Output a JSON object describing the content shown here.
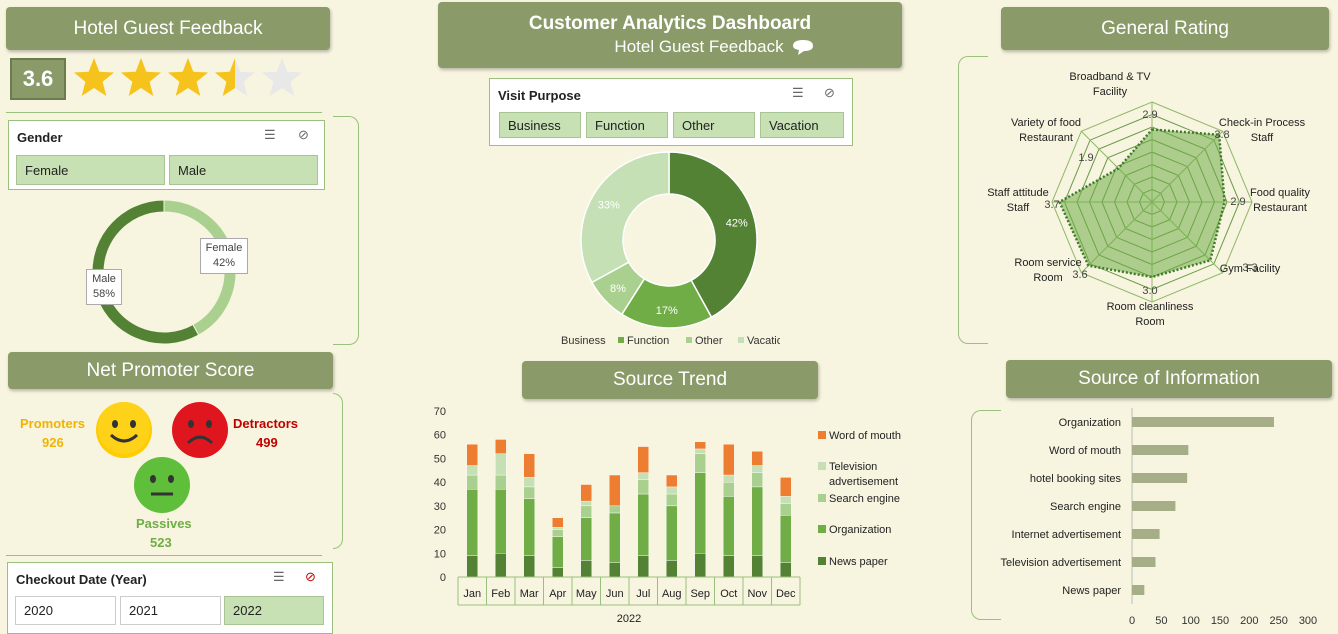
{
  "dashboard": {
    "title": "Customer Analytics Dashboard",
    "subtitle": "Hotel Guest Feedback"
  },
  "feedback": {
    "header": "Hotel Guest Feedback",
    "rating": "3.6"
  },
  "gender": {
    "title": "Gender",
    "buttons": [
      "Female",
      "Male"
    ],
    "chart_labels": {
      "female": "Female",
      "female_pct": "42%",
      "male": "Male",
      "male_pct": "58%"
    }
  },
  "visit": {
    "title": "Visit Purpose",
    "buttons": [
      "Business",
      "Function",
      "Other",
      "Vacation"
    ]
  },
  "nps": {
    "header": "Net Promoter Score",
    "promoters_label": "Promoters",
    "promoters": "926",
    "detractors_label": "Detractors",
    "detractors": "499",
    "passives_label": "Passives",
    "passives": "523"
  },
  "checkout": {
    "title": "Checkout Date (Year)",
    "buttons": [
      "2020",
      "2021",
      "2022"
    ],
    "selected": "2022"
  },
  "headers": {
    "general_rating": "General Rating",
    "source_trend": "Source Trend",
    "source_info": "Source of Information"
  },
  "colors": {
    "header": "#8a9a68",
    "dark_green": "#548235",
    "green": "#70ad47",
    "light_green": "#a9d08e",
    "pale_green": "#c5e0b4",
    "orange": "#ed7d31",
    "promoter": "#f0b400",
    "detractor": "#c00000",
    "passive": "#70ad47"
  },
  "chart_data": [
    {
      "type": "pie",
      "title": "",
      "categories": [
        "Female",
        "Male"
      ],
      "values": [
        42,
        58
      ]
    },
    {
      "type": "pie",
      "title": "",
      "categories": [
        "Business",
        "Function",
        "Other",
        "Vacation"
      ],
      "values": [
        42,
        17,
        8,
        33
      ],
      "labels": [
        "42%",
        "17%",
        "8%",
        "33%"
      ]
    },
    {
      "type": "radar",
      "title": "",
      "categories": [
        "Broadband & TV Facility",
        "Check-in Process Staff",
        "Food quality Restaurant",
        "Gym Facility",
        "Room cleanliness Room",
        "Room service Room",
        "Staff attitude Staff",
        "Variety of food Restaurant"
      ],
      "category_lines": [
        [
          "Broadband & TV",
          "Facility"
        ],
        [
          "Check-in Process",
          "Staff"
        ],
        [
          "Food quality",
          "Restaurant"
        ],
        [
          "Gym Facility"
        ],
        [
          "Room cleanliness",
          "Room"
        ],
        [
          "Room service",
          "Room"
        ],
        [
          "Staff attitude",
          "Staff"
        ],
        [
          "Variety of food",
          "Restaurant"
        ]
      ],
      "values": [
        2.9,
        3.8,
        2.9,
        3.3,
        3.0,
        3.6,
        3.7,
        1.9
      ],
      "value_labels": [
        "2.9",
        "3.8",
        "2.9",
        "3.3",
        "3.0",
        "3.6",
        "3.7",
        "1.9"
      ],
      "rmax": 4
    },
    {
      "type": "bar",
      "stacked": true,
      "title": "",
      "categories": [
        "Jan",
        "Feb",
        "Mar",
        "Apr",
        "May",
        "Jun",
        "Jul",
        "Aug",
        "Sep",
        "Oct",
        "Nov",
        "Dec"
      ],
      "xlabel": "2022",
      "ylim": [
        0,
        70
      ],
      "yticks": [
        "0",
        "10",
        "20",
        "30",
        "40",
        "50",
        "60",
        "70"
      ],
      "series": [
        {
          "name": "News paper",
          "values": [
            9,
            10,
            9,
            4,
            7,
            6,
            9,
            7,
            10,
            9,
            9,
            6
          ]
        },
        {
          "name": "Organization",
          "values": [
            28,
            27,
            24,
            13,
            18,
            21,
            26,
            23,
            34,
            25,
            29,
            20
          ]
        },
        {
          "name": "Search engine",
          "values": [
            6,
            6,
            5,
            3,
            5,
            3,
            6,
            5,
            8,
            6,
            6,
            5
          ]
        },
        {
          "name": "Television advertisement",
          "values": [
            4,
            9,
            4,
            1,
            2,
            0,
            3,
            3,
            2,
            3,
            3,
            3
          ]
        },
        {
          "name": "Word of mouth",
          "values": [
            9,
            6,
            10,
            4,
            7,
            13,
            11,
            5,
            3,
            13,
            6,
            8
          ]
        }
      ],
      "legend": "right"
    },
    {
      "type": "bar",
      "orientation": "horizontal",
      "title": "",
      "categories": [
        "Organization",
        "Word of mouth",
        "hotel booking sites",
        "Search engine",
        "Internet advertisement",
        "Television advertisement",
        "News paper"
      ],
      "values": [
        242,
        96,
        94,
        74,
        47,
        40,
        21
      ],
      "xlim": [
        0,
        300
      ],
      "xticks": [
        "0",
        "50",
        "100",
        "150",
        "200",
        "250",
        "300"
      ]
    }
  ]
}
